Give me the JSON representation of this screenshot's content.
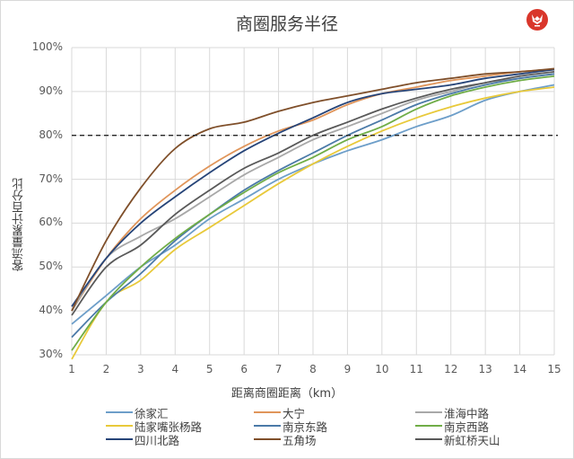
{
  "header": {
    "title": "商圈服务半径",
    "logo_icon": "red-fox-logo-icon"
  },
  "chart_data": {
    "type": "line",
    "title": "商圈服务半径",
    "xlabel": "距离商圈距离（km）",
    "ylabel": "客流量累计百分比",
    "x": [
      1,
      2,
      3,
      4,
      5,
      6,
      7,
      8,
      9,
      10,
      11,
      12,
      13,
      14,
      15
    ],
    "x_ticks": [
      "1",
      "2",
      "3",
      "4",
      "5",
      "6",
      "7",
      "8",
      "9",
      "10",
      "11",
      "12",
      "13",
      "14",
      "15"
    ],
    "y_ticks": [
      "100%",
      "90%",
      "80%",
      "70%",
      "60%",
      "50%",
      "40%",
      "30%"
    ],
    "ylim": [
      30,
      100
    ],
    "xlim": [
      1,
      15
    ],
    "grid": true,
    "legend_position": "bottom",
    "reference_line": {
      "y": 80,
      "style": "dashed",
      "color": "#262626"
    },
    "series": [
      {
        "name": "徐家汇",
        "color": "#6d9ec9",
        "values": [
          37,
          43.5,
          50,
          55,
          61,
          65.5,
          70,
          73.5,
          76.5,
          79,
          82,
          84.5,
          88,
          90,
          91.5
        ]
      },
      {
        "name": "大宁",
        "color": "#e0955a",
        "values": [
          40,
          52,
          61,
          67.5,
          73,
          77.5,
          81,
          83.5,
          87,
          89.5,
          91,
          92.5,
          93.5,
          94.5,
          95
        ]
      },
      {
        "name": "淮海中路",
        "color": "#a8a8a8",
        "values": [
          40,
          52,
          57,
          61,
          66,
          71,
          75,
          79,
          82,
          85,
          88,
          90,
          92,
          93,
          94
        ]
      },
      {
        "name": "陆家嘴张杨路",
        "color": "#e8c93a",
        "values": [
          29,
          42,
          47,
          54,
          59,
          64,
          69,
          73.5,
          77.5,
          81,
          84,
          86.5,
          88.5,
          90,
          91
        ]
      },
      {
        "name": "南京东路",
        "color": "#4b7aa8",
        "values": [
          34,
          42,
          48.5,
          56,
          62,
          67.5,
          72,
          76,
          80,
          83.5,
          87,
          89.5,
          91.5,
          93,
          94
        ]
      },
      {
        "name": "南京西路",
        "color": "#70ad47",
        "values": [
          31,
          42,
          50,
          56.5,
          62,
          67,
          71.5,
          75,
          79,
          82,
          86,
          89,
          91,
          92.5,
          93.5
        ]
      },
      {
        "name": "四川北路",
        "color": "#264478",
        "values": [
          41,
          52,
          60,
          66,
          71.5,
          76.5,
          80.5,
          84,
          87.5,
          89.5,
          90.5,
          91.5,
          93,
          94,
          95
        ]
      },
      {
        "name": "五角场",
        "color": "#7f4f2a",
        "values": [
          40,
          56,
          68,
          77,
          81.5,
          83,
          85.5,
          87.5,
          89,
          90.5,
          92,
          93,
          94,
          94.5,
          95.2
        ]
      },
      {
        "name": "新虹桥天山",
        "color": "#595959",
        "values": [
          39,
          50,
          55,
          62,
          67.5,
          72.5,
          76,
          80,
          83,
          86,
          88.5,
          90.5,
          92,
          93.5,
          94.5
        ]
      }
    ]
  }
}
